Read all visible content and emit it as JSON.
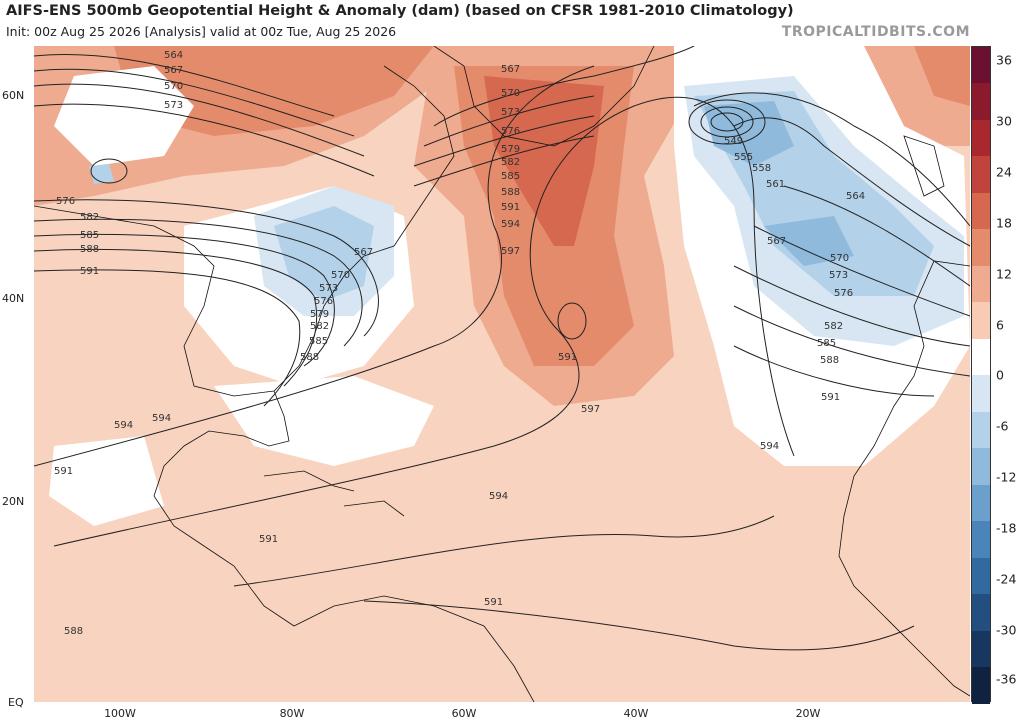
{
  "header": {
    "title": "AIFS-ENS 500mb Geopotential Height & Anomaly (dam) (based on CFSR 1981-2010 Climatology)",
    "subtitle": "Init: 00z Aug 25 2026  [Analysis]  valid at 00z Tue, Aug 25 2026",
    "site": "TROPICALTIDBITS.COM"
  },
  "axes": {
    "lat_labels": [
      "60N",
      "40N",
      "20N",
      "EQ"
    ],
    "lon_labels": [
      "100W",
      "80W",
      "60W",
      "40W",
      "20W"
    ]
  },
  "colorbar": {
    "ticks": [
      "36",
      "30",
      "24",
      "18",
      "12",
      "6",
      "0",
      "-6",
      "-12",
      "-18",
      "-24",
      "-30",
      "-36"
    ],
    "colors": [
      "#6b1030",
      "#8a1a2c",
      "#a8282e",
      "#c0443c",
      "#d5684f",
      "#e48b6c",
      "#efab8f",
      "#f8cbb4",
      "#ffffff",
      "#d7e6f2",
      "#b3d1e8",
      "#8fbadc",
      "#6aa0cb",
      "#4a84b8",
      "#326aa0",
      "#224f80",
      "#173760",
      "#0f2240"
    ]
  },
  "contours": {
    "labels": [
      "564",
      "567",
      "570",
      "573",
      "576",
      "582",
      "585",
      "588",
      "591",
      "594",
      "567",
      "570",
      "573",
      "576",
      "579",
      "582",
      "585",
      "588",
      "591",
      "594",
      "597",
      "597",
      "549",
      "555",
      "558",
      "561",
      "564",
      "567",
      "570",
      "573",
      "576",
      "582",
      "585",
      "588",
      "591",
      "594",
      "591",
      "594",
      "591",
      "594",
      "591",
      "588",
      "591",
      "567",
      "570",
      "573",
      "576",
      "579",
      "582",
      "585",
      "588"
    ]
  }
}
